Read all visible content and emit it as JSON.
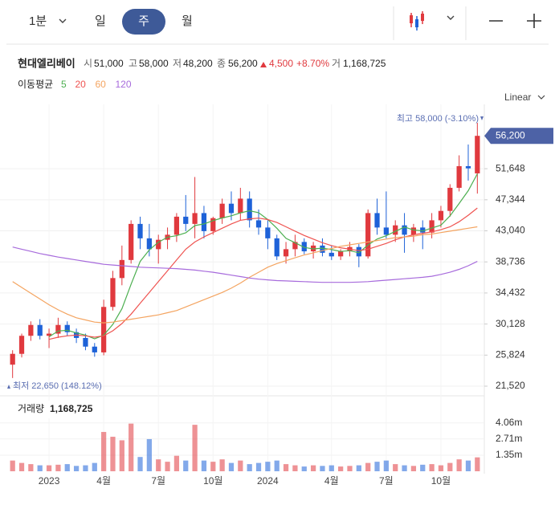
{
  "toolbar": {
    "intervals": [
      "1분",
      "일",
      "주",
      "월"
    ]
  },
  "chart_data": {
    "type": "candlestick",
    "title": "현대엘리베이",
    "quote": [
      {
        "label": "시",
        "value": "51,000"
      },
      {
        "label": "고",
        "value": "58,000"
      },
      {
        "label": "저",
        "value": "48,200"
      },
      {
        "label": "종",
        "value": "56,200"
      },
      {
        "label": "거",
        "value": "1,168,725"
      }
    ],
    "change": "4,500",
    "change_pct": "+8.70%",
    "ma_label": "이동평균",
    "scale": "Linear",
    "high_note": "최고 58,000 (-3.10%)",
    "low_note": "최저 22,650 (148.12%)",
    "up_color": "#e0393e",
    "down_color": "#1e62d8",
    "categories": [
      null,
      null,
      null,
      null,
      "2023",
      null,
      null,
      null,
      null,
      null,
      "4월",
      null,
      null,
      null,
      null,
      null,
      "7월",
      null,
      null,
      null,
      null,
      null,
      "10월",
      null,
      null,
      null,
      null,
      null,
      "2024",
      null,
      null,
      null,
      null,
      null,
      null,
      "4월",
      null,
      null,
      null,
      null,
      null,
      "7월",
      null,
      null,
      null,
      null,
      null,
      "10월",
      null,
      null,
      null,
      null
    ],
    "open": [
      24500,
      26000,
      28500,
      30000,
      28500,
      28800,
      30000,
      29000,
      28200,
      27000,
      26200,
      32500,
      36500,
      39000,
      44000,
      42000,
      40500,
      41800,
      42500,
      45000,
      44000,
      45500,
      43000,
      44800,
      46800,
      45500,
      47500,
      44500,
      43500,
      42000,
      39500,
      40500,
      41500,
      40200,
      41000,
      40000,
      39500,
      40200,
      40800,
      39500,
      45500,
      43500,
      42500,
      43800,
      42500,
      43500,
      42800,
      44500,
      45800,
      49000,
      52000,
      51000
    ],
    "high": [
      26500,
      28800,
      30500,
      30800,
      29500,
      31000,
      30500,
      29500,
      28800,
      27500,
      33500,
      37500,
      41000,
      44500,
      45000,
      44000,
      42500,
      43500,
      45500,
      48000,
      50500,
      46500,
      45000,
      47500,
      48500,
      49000,
      48500,
      46000,
      44500,
      42500,
      41500,
      42500,
      42000,
      41500,
      42000,
      41000,
      40500,
      41500,
      41200,
      46000,
      47500,
      48500,
      44500,
      45500,
      44000,
      44500,
      45500,
      46500,
      49500,
      53500,
      55000,
      58000
    ],
    "low": [
      22650,
      25500,
      27800,
      28000,
      26800,
      28200,
      28500,
      27500,
      26500,
      25600,
      25800,
      32000,
      35500,
      38500,
      40500,
      39500,
      38500,
      40500,
      41500,
      43000,
      42000,
      42000,
      42500,
      44000,
      44500,
      44500,
      43500,
      42500,
      40500,
      39000,
      38500,
      39500,
      39800,
      39200,
      39500,
      39000,
      39000,
      39500,
      38000,
      39200,
      42500,
      42000,
      41500,
      40000,
      41500,
      40500,
      42000,
      43500,
      45000,
      48500,
      50000,
      48200
    ],
    "close": [
      26000,
      28500,
      30000,
      28500,
      28800,
      30000,
      29000,
      28200,
      27000,
      26200,
      32500,
      36500,
      39000,
      44000,
      42000,
      40500,
      41800,
      42500,
      45000,
      44000,
      45500,
      43000,
      44800,
      46800,
      45500,
      47500,
      44500,
      43500,
      42000,
      39500,
      40500,
      41500,
      40200,
      41000,
      40000,
      39500,
      40200,
      40800,
      39500,
      45500,
      43500,
      42500,
      43800,
      42500,
      43500,
      42800,
      44500,
      45800,
      49000,
      52000,
      51700,
      56200
    ],
    "series": [
      {
        "name": "5",
        "color": "#4caf50",
        "values": [
          null,
          null,
          null,
          null,
          28360,
          29160,
          29260,
          28900,
          28600,
          28080,
          28580,
          30080,
          32240,
          35640,
          38800,
          40400,
          41460,
          42160,
          42360,
          42760,
          43760,
          44000,
          44460,
          44820,
          45120,
          45520,
          45820,
          45560,
          44600,
          43400,
          42000,
          41400,
          40740,
          40540,
          40640,
          40440,
          40180,
          40300,
          40000,
          41100,
          41900,
          42360,
          42960,
          43560,
          43160,
          43020,
          43420,
          43820,
          45120,
          46820,
          48600,
          50940
        ]
      },
      {
        "name": "20",
        "color": "#ef5350",
        "values": [
          null,
          null,
          null,
          null,
          28000,
          28300,
          28500,
          28600,
          28500,
          28300,
          28500,
          29200,
          30200,
          31500,
          33000,
          34500,
          36000,
          37500,
          39000,
          40500,
          41500,
          42200,
          42800,
          43400,
          44000,
          44500,
          44700,
          44800,
          44600,
          44200,
          43600,
          43000,
          42400,
          41900,
          41400,
          41000,
          40700,
          40500,
          40300,
          40500,
          40900,
          41300,
          41800,
          42200,
          42500,
          42700,
          42900,
          43200,
          43600,
          44300,
          45200,
          46200
        ]
      },
      {
        "name": "60",
        "color": "#f4a460",
        "values": [
          36000,
          35200,
          34400,
          33600,
          32800,
          32100,
          31500,
          31000,
          30700,
          30400,
          30300,
          30400,
          30600,
          30800,
          31000,
          31200,
          31400,
          31700,
          32000,
          32500,
          33000,
          33500,
          34000,
          34500,
          35100,
          35800,
          36600,
          37300,
          38000,
          38500,
          38900,
          39300,
          39700,
          40000,
          40300,
          40600,
          40900,
          41100,
          41300,
          41500,
          41700,
          41900,
          42100,
          42200,
          42300,
          42500,
          42600,
          42800,
          43000,
          43200,
          43400,
          43600
        ]
      },
      {
        "name": "120",
        "color": "#a76bdc",
        "values": [
          40800,
          40500,
          40200,
          39900,
          39650,
          39400,
          39200,
          39000,
          38800,
          38600,
          38400,
          38300,
          38200,
          38100,
          38000,
          37950,
          37900,
          37850,
          37800,
          37700,
          37600,
          37450,
          37300,
          37100,
          36900,
          36700,
          36500,
          36350,
          36250,
          36150,
          36100,
          36050,
          36000,
          35950,
          35900,
          35900,
          35900,
          35900,
          35950,
          36000,
          36100,
          36200,
          36300,
          36400,
          36500,
          36600,
          36750,
          37000,
          37300,
          37700,
          38200,
          38800
        ]
      }
    ],
    "ylim": [
      20520,
      60560
    ],
    "yticks": [
      {
        "value": 21520,
        "label": "21,520"
      },
      {
        "value": 25824,
        "label": "25,824"
      },
      {
        "value": 30128,
        "label": "30,128"
      },
      {
        "value": 34432,
        "label": "34,432"
      },
      {
        "value": 38736,
        "label": "38,736"
      },
      {
        "value": 43040,
        "label": "43,040"
      },
      {
        "value": 47344,
        "label": "47,344"
      },
      {
        "value": 51648,
        "label": "51,648"
      }
    ],
    "current_price": {
      "value": 56200,
      "label": "56,200"
    },
    "grid": true,
    "volume_title": "거래량",
    "volume": [
      900000,
      700000,
      600000,
      500000,
      500000,
      550000,
      600000,
      450000,
      500000,
      700000,
      3300000,
      2900000,
      2600000,
      4000000,
      1200000,
      2700000,
      1000000,
      800000,
      1300000,
      900000,
      3900000,
      900000,
      800000,
      1000000,
      700000,
      900000,
      600000,
      700000,
      800000,
      900000,
      600000,
      500000,
      400000,
      500000,
      450000,
      500000,
      400000,
      450000,
      500000,
      700000,
      800000,
      900000,
      600000,
      500000,
      450000,
      550000,
      600000,
      500000,
      700000,
      1000000,
      900000,
      1168725
    ],
    "vylim": [
      0,
      6200000
    ],
    "vyticks": [
      {
        "value": 1350000,
        "label": "1.35m"
      },
      {
        "value": 2710000,
        "label": "2.71m"
      },
      {
        "value": 4060000,
        "label": "4.06m"
      }
    ]
  }
}
